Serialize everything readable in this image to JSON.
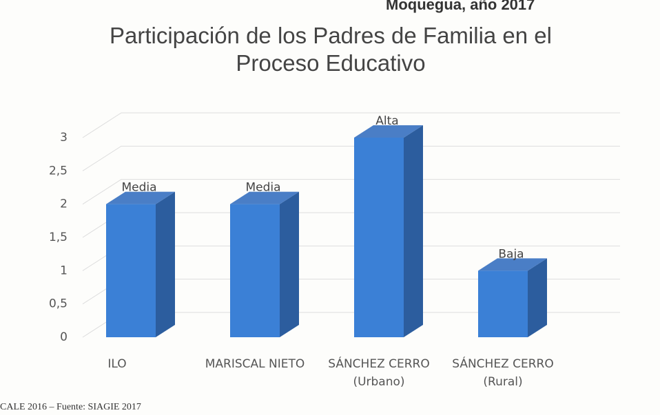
{
  "chart_data": {
    "type": "bar3d",
    "title": "Participación de los Padres de Familia en el Proceso Educativo",
    "header_fragment": "Moquegua, año 2017",
    "source": "CALE 2016 – Fuente: SIAGIE 2017",
    "categories": [
      "ILO",
      "MARISCAL NIETO",
      "SÁNCHEZ CERRO (Urbano)",
      "SÁNCHEZ CERRO (Rural)"
    ],
    "values": [
      2,
      2,
      3,
      1
    ],
    "value_labels": [
      "Media",
      "Media",
      "Alta",
      "Baja"
    ],
    "color": "#3b80d6",
    "ylim": [
      0,
      3
    ],
    "yticks": [
      0,
      {
        "value": 0.5,
        "label": "0,5"
      },
      1,
      {
        "value": 1.5,
        "label": "1,5"
      },
      2,
      {
        "value": 2.5,
        "label": "2,5"
      },
      3
    ],
    "grid": true
  }
}
